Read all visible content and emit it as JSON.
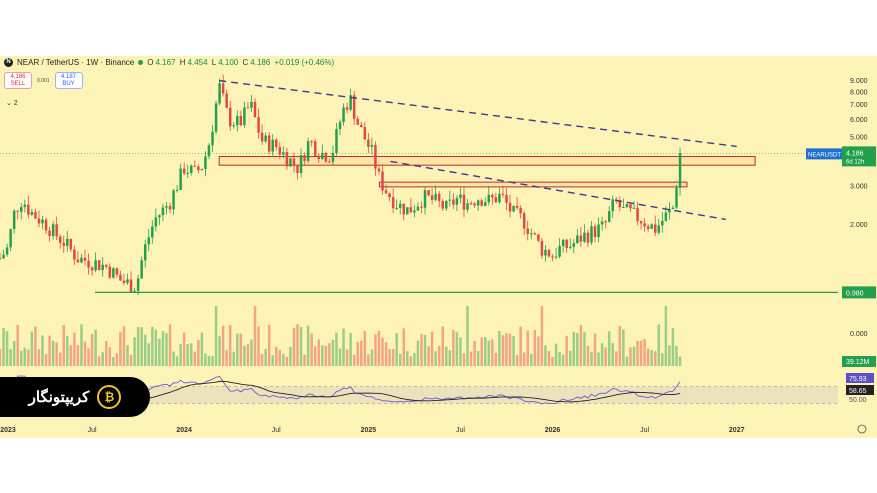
{
  "header": {
    "symbol_title": "NEAR / TetherUS · 1W · Binance",
    "logo_letter": "N",
    "ohlc": [
      {
        "k": "O",
        "v": "4.167"
      },
      {
        "k": "H",
        "v": "4.454"
      },
      {
        "k": "L",
        "v": "4.100"
      },
      {
        "k": "C",
        "v": "4.186"
      },
      {
        "k": "",
        "v": "+0.019 (+0.46%)"
      }
    ]
  },
  "trade": {
    "sell_price": "4.186",
    "sell_label": "SELL",
    "spread": "0.001",
    "buy_price": "4.187",
    "buy_label": "BUY"
  },
  "indicator_toggle": "⌄ 2",
  "brand": {
    "text": "کریپتونگار",
    "logo": "₿"
  },
  "colors": {
    "background": "#fdf3b7",
    "up": "#22a04b",
    "down": "#e54545",
    "trendline": "#3b3a8f",
    "support": "#22a04b",
    "zone": "#b03030"
  },
  "chart_data": {
    "type": "candlestick",
    "symbol": "NEARUSDT",
    "interval": "1W",
    "y_scale": "log",
    "ylim": [
      0.75,
      10.0
    ],
    "y_ticks": [
      "9.000",
      "8.000",
      "7.000",
      "6.000",
      "5.000",
      "4.000",
      "3.000",
      "2.000"
    ],
    "x_ticks": [
      "2023",
      "Jul",
      "2024",
      "Jul",
      "2025",
      "Jul",
      "2026",
      "Jul",
      "2027"
    ],
    "x_tick_years": [
      2023.0,
      2023.5,
      2024.0,
      2024.5,
      2025.0,
      2025.5,
      2026.0,
      2026.5,
      2027.0
    ],
    "xlim": [
      2023.0,
      2027.55
    ],
    "anchors": [
      [
        2023.0,
        1.4
      ],
      [
        2023.04,
        1.55
      ],
      [
        2023.08,
        2.3
      ],
      [
        2023.12,
        2.6
      ],
      [
        2023.16,
        2.3
      ],
      [
        2023.2,
        2.15
      ],
      [
        2023.25,
        2.0
      ],
      [
        2023.3,
        1.8
      ],
      [
        2023.35,
        1.65
      ],
      [
        2023.42,
        1.4
      ],
      [
        2023.5,
        1.35
      ],
      [
        2023.58,
        1.28
      ],
      [
        2023.66,
        1.1
      ],
      [
        2023.74,
        1.05
      ],
      [
        2023.78,
        1.5
      ],
      [
        2023.84,
        2.1
      ],
      [
        2023.92,
        2.5
      ],
      [
        2024.0,
        3.6
      ],
      [
        2024.06,
        3.4
      ],
      [
        2024.1,
        3.7
      ],
      [
        2024.14,
        4.8
      ],
      [
        2024.19,
        8.5
      ],
      [
        2024.24,
        6.0
      ],
      [
        2024.3,
        5.7
      ],
      [
        2024.36,
        7.0
      ],
      [
        2024.42,
        4.8
      ],
      [
        2024.5,
        4.5
      ],
      [
        2024.56,
        4.0
      ],
      [
        2024.62,
        3.6
      ],
      [
        2024.68,
        4.8
      ],
      [
        2024.74,
        4.2
      ],
      [
        2024.8,
        4.1
      ],
      [
        2024.86,
        6.5
      ],
      [
        2024.9,
        7.5
      ],
      [
        2024.94,
        5.8
      ],
      [
        2024.98,
        4.9
      ],
      [
        2025.02,
        4.2
      ],
      [
        2025.06,
        3.2
      ],
      [
        2025.1,
        2.8
      ],
      [
        2025.16,
        2.45
      ],
      [
        2025.22,
        2.3
      ],
      [
        2025.3,
        2.65
      ],
      [
        2025.36,
        2.55
      ],
      [
        2025.42,
        2.35
      ],
      [
        2025.48,
        2.6
      ],
      [
        2025.54,
        2.5
      ],
      [
        2025.6,
        2.65
      ],
      [
        2025.66,
        2.55
      ],
      [
        2025.72,
        2.7
      ],
      [
        2025.78,
        2.25
      ],
      [
        2025.84,
        2.1
      ],
      [
        2025.88,
        1.85
      ],
      [
        2025.94,
        1.55
      ],
      [
        2026.0,
        1.45
      ],
      [
        2026.04,
        1.55
      ],
      [
        2026.1,
        1.6
      ],
      [
        2026.16,
        1.75
      ],
      [
        2026.22,
        1.85
      ],
      [
        2026.28,
        1.95
      ],
      [
        2026.34,
        2.55
      ],
      [
        2026.38,
        2.3
      ],
      [
        2026.42,
        2.25
      ],
      [
        2026.48,
        2.1
      ],
      [
        2026.56,
        1.9
      ],
      [
        2026.62,
        2.2
      ],
      [
        2026.66,
        2.4
      ],
      [
        2026.68,
        3.5
      ],
      [
        2026.7,
        4.19
      ]
    ],
    "current_price": 4.186,
    "price_label": "NEARUSDT",
    "price_value": "4.186",
    "countdown": "6d 12h",
    "support_line": {
      "value": 0.98,
      "label": "0.980"
    },
    "resistance_zones": [
      {
        "from_year": 2024.19,
        "to_year": 2027.1,
        "low": 3.7,
        "high": 4.05
      },
      {
        "from_year": 2025.06,
        "to_year": 2026.73,
        "low": 2.95,
        "high": 3.1
      }
    ],
    "trendlines": [
      {
        "from": [
          2024.19,
          8.95
        ],
        "to": [
          2027.0,
          4.5
        ]
      },
      {
        "from": [
          2025.12,
          3.85
        ],
        "to": [
          2026.94,
          2.1
        ]
      }
    ],
    "volume_label": "39.12M",
    "volume_axis_label": "0.000",
    "rsi": {
      "labels": [
        "75.93",
        "58.65",
        "50.00"
      ],
      "upper_band": 70,
      "lower_band": 30
    }
  }
}
